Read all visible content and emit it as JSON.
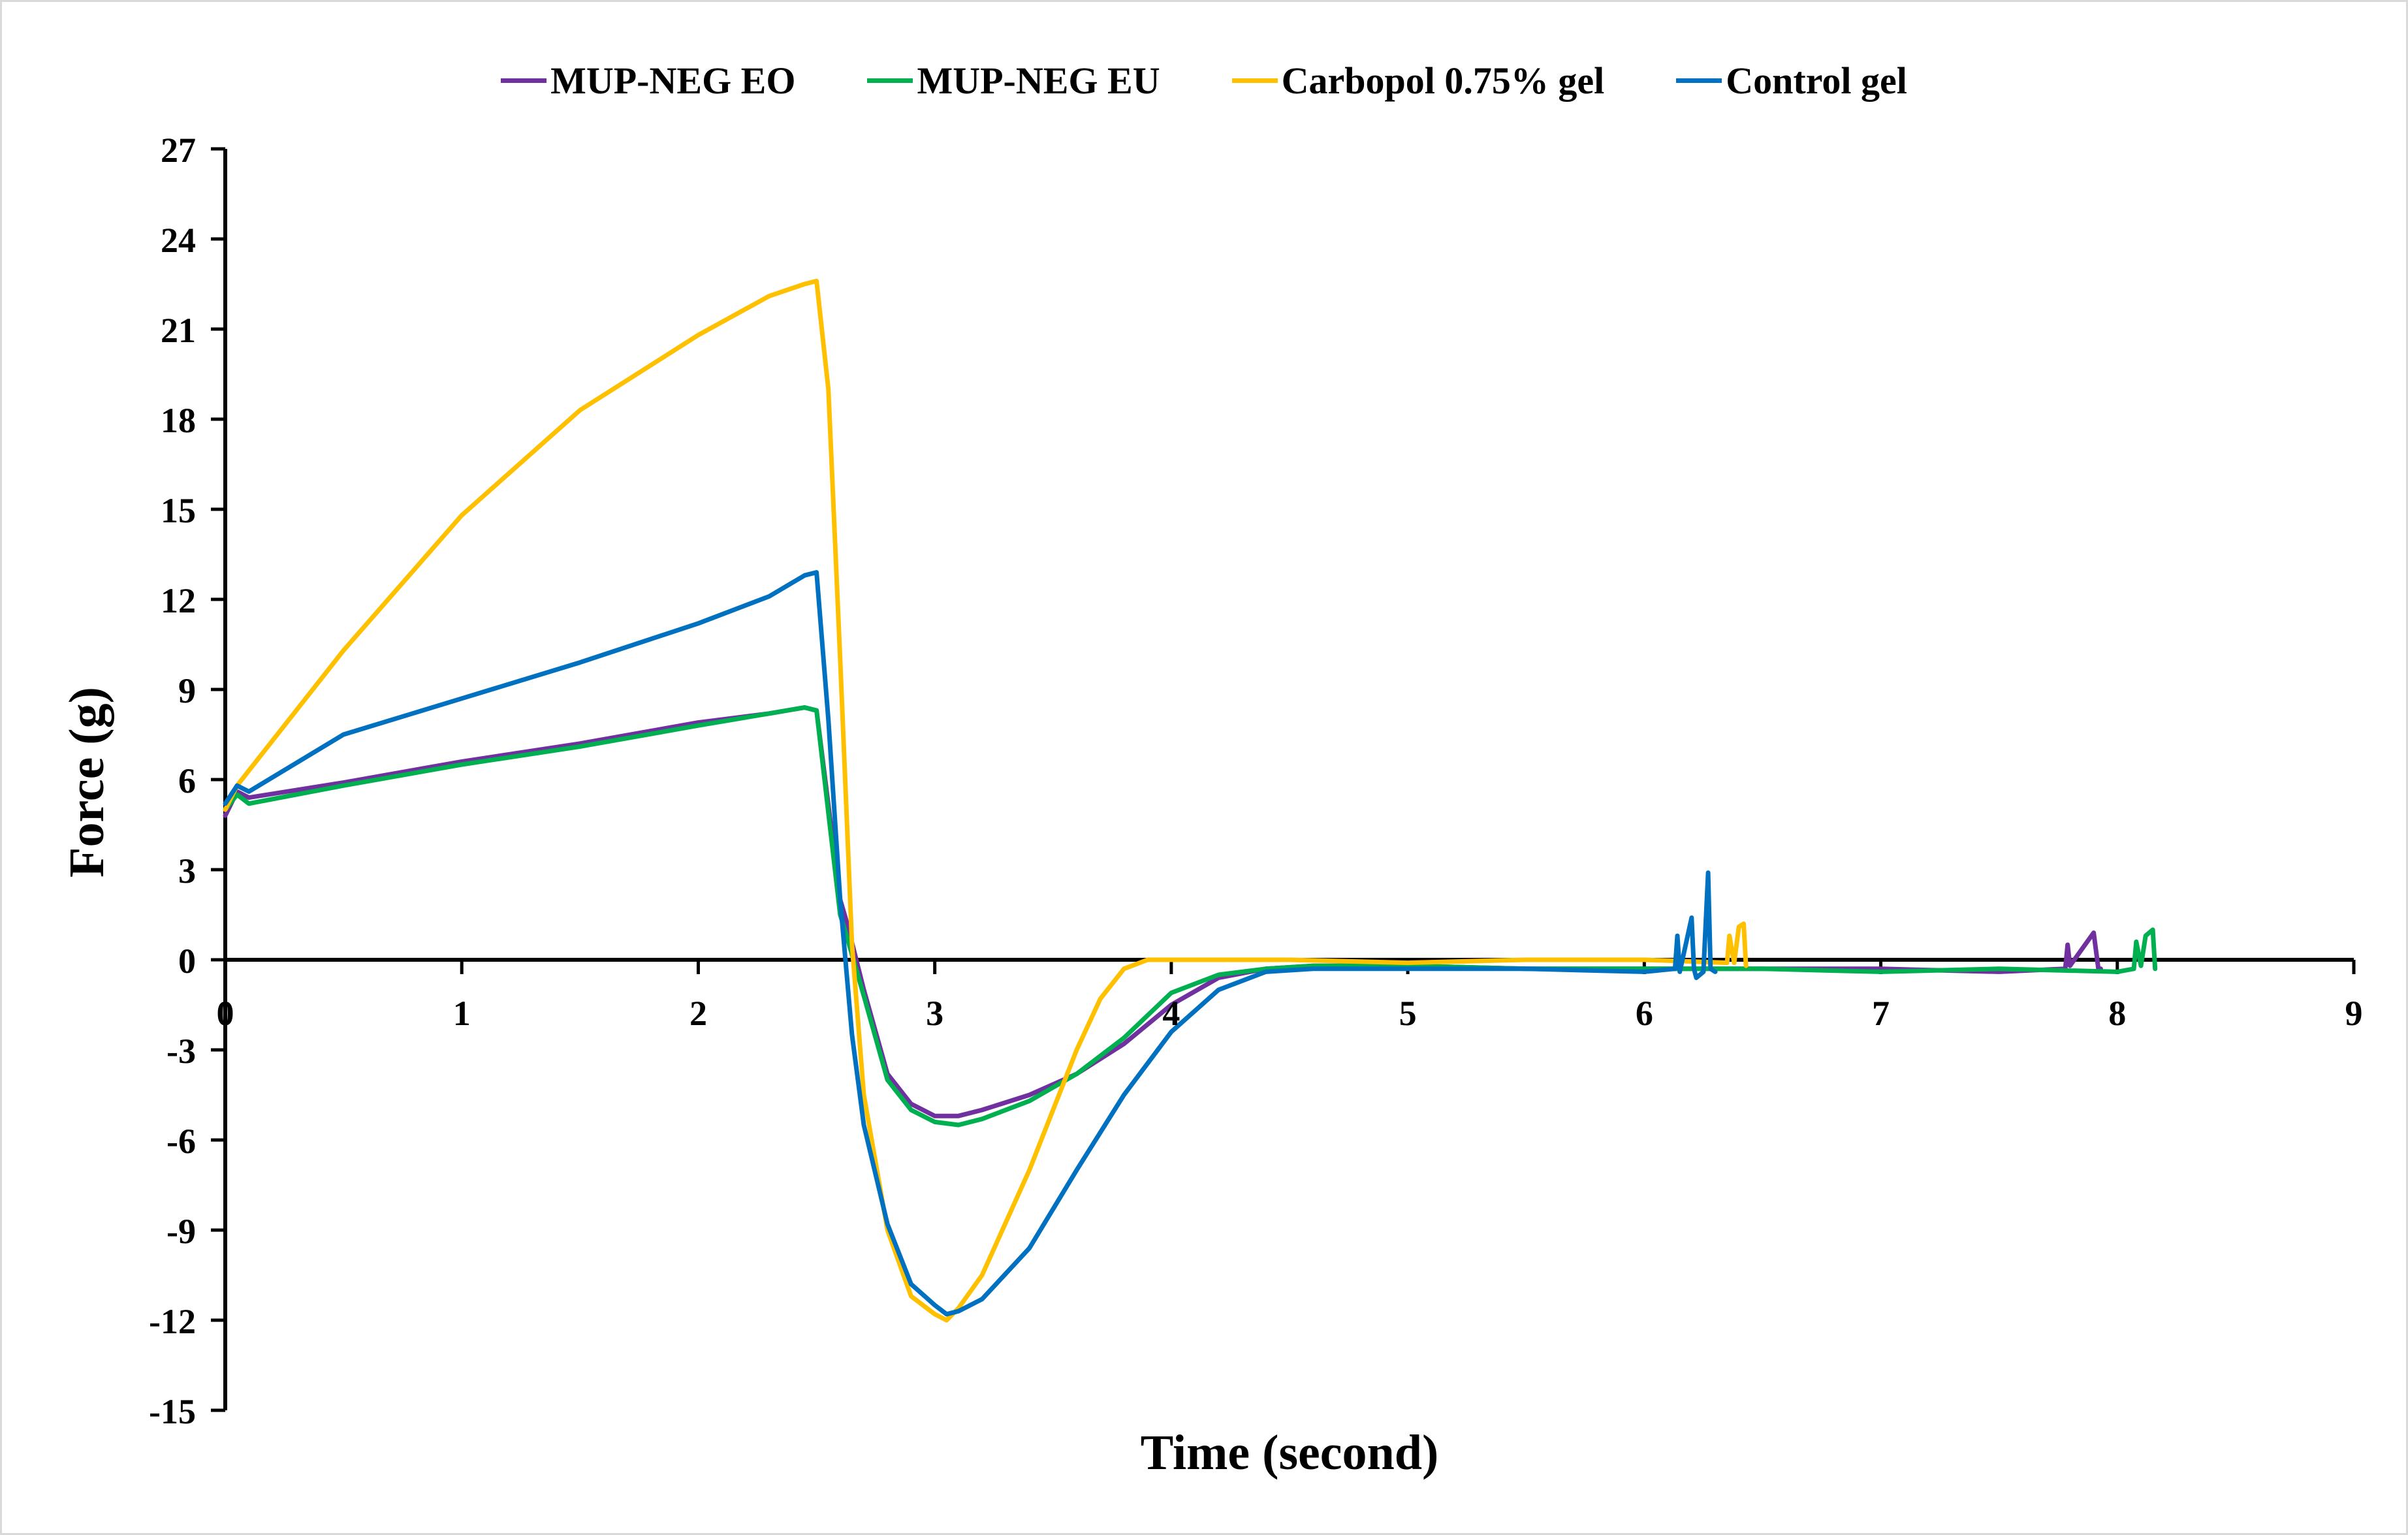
{
  "chart_data": {
    "type": "line",
    "title": "",
    "xlabel": "Time (second)",
    "ylabel": "Force (g)",
    "xlim": [
      0,
      9
    ],
    "ylim": [
      -15,
      27
    ],
    "x_ticks": [
      "0",
      "1",
      "2",
      "3",
      "4",
      "5",
      "6",
      "7",
      "8",
      "9"
    ],
    "y_ticks": [
      "27",
      "24",
      "21",
      "18",
      "15",
      "12",
      "9",
      "6",
      "3",
      "0",
      "-3",
      "-6",
      "-9",
      "-12",
      "-15"
    ],
    "legend_position": "top-center",
    "series": [
      {
        "name": "MUP-NEG EO",
        "color": "#7030A0",
        "x": [
          0,
          0.05,
          0.1,
          0.5,
          1,
          1.5,
          2,
          2.3,
          2.45,
          2.5,
          2.6,
          2.63,
          2.7,
          2.8,
          2.9,
          3.0,
          3.1,
          3.2,
          3.4,
          3.6,
          3.8,
          4.0,
          4.2,
          4.4,
          4.6,
          5.0,
          5.5,
          6.0,
          6.3,
          6.5,
          7.0,
          7.5,
          7.78,
          7.79,
          7.8,
          7.9,
          7.92,
          7.93
        ],
        "y": [
          4.8,
          5.6,
          5.4,
          5.9,
          6.6,
          7.2,
          7.9,
          8.2,
          8.4,
          8.3,
          2.0,
          1.2,
          -1.0,
          -3.8,
          -4.8,
          -5.2,
          -5.2,
          -5.0,
          -4.5,
          -3.8,
          -2.8,
          -1.5,
          -0.6,
          -0.3,
          -0.2,
          -0.2,
          -0.3,
          -0.3,
          -0.3,
          -0.3,
          -0.3,
          -0.4,
          -0.3,
          0.5,
          -0.2,
          0.9,
          -0.3,
          -0.3
        ]
      },
      {
        "name": "MUP-NEG EU",
        "color": "#00B050",
        "x": [
          0,
          0.05,
          0.1,
          0.5,
          1,
          1.5,
          2,
          2.3,
          2.45,
          2.5,
          2.6,
          2.62,
          2.7,
          2.8,
          2.9,
          3.0,
          3.1,
          3.2,
          3.4,
          3.6,
          3.8,
          4.0,
          4.2,
          4.4,
          4.6,
          5.0,
          5.5,
          6.0,
          6.5,
          7.0,
          7.5,
          8.0,
          8.07,
          8.08,
          8.1,
          8.12,
          8.15,
          8.16
        ],
        "y": [
          5.0,
          5.5,
          5.2,
          5.8,
          6.5,
          7.1,
          7.8,
          8.2,
          8.4,
          8.3,
          1.5,
          1.0,
          -1.2,
          -4.0,
          -5.0,
          -5.4,
          -5.5,
          -5.3,
          -4.7,
          -3.8,
          -2.6,
          -1.1,
          -0.5,
          -0.3,
          -0.2,
          -0.2,
          -0.3,
          -0.3,
          -0.3,
          -0.4,
          -0.3,
          -0.4,
          -0.3,
          0.6,
          -0.2,
          0.8,
          1.0,
          -0.3
        ]
      },
      {
        "name": "Carbopol 0.75% gel",
        "color": "#FFC000",
        "x": [
          0,
          0.05,
          0.1,
          0.5,
          1,
          1.5,
          2,
          2.3,
          2.45,
          2.5,
          2.55,
          2.6,
          2.65,
          2.7,
          2.8,
          2.9,
          3.0,
          3.05,
          3.1,
          3.2,
          3.4,
          3.6,
          3.7,
          3.8,
          3.9,
          4.0,
          4.5,
          5.0,
          5.5,
          6.0,
          6.35,
          6.36,
          6.38,
          6.4,
          6.42,
          6.43
        ],
        "y": [
          5.0,
          5.8,
          6.3,
          10.3,
          14.8,
          18.3,
          20.8,
          22.1,
          22.5,
          22.6,
          19.0,
          10.0,
          0.5,
          -4.5,
          -9.0,
          -11.2,
          -11.8,
          -12.0,
          -11.6,
          -10.5,
          -7.0,
          -3.0,
          -1.3,
          -0.3,
          0.0,
          0.0,
          0.0,
          -0.1,
          0.0,
          0.0,
          -0.1,
          0.8,
          -0.1,
          1.1,
          1.2,
          -0.2
        ]
      },
      {
        "name": "Control gel",
        "color": "#0070C0",
        "x": [
          0,
          0.05,
          0.1,
          0.5,
          1,
          1.5,
          2,
          2.3,
          2.45,
          2.5,
          2.55,
          2.6,
          2.65,
          2.7,
          2.8,
          2.9,
          3.0,
          3.05,
          3.1,
          3.2,
          3.4,
          3.6,
          3.8,
          4.0,
          4.2,
          4.4,
          4.6,
          5.0,
          5.5,
          6.0,
          6.13,
          6.14,
          6.15,
          6.2,
          6.21,
          6.22,
          6.25,
          6.27,
          6.28,
          6.3
        ],
        "y": [
          5.2,
          5.8,
          5.6,
          7.5,
          8.7,
          9.9,
          11.2,
          12.1,
          12.8,
          12.9,
          8.0,
          2.0,
          -2.5,
          -5.5,
          -8.8,
          -10.8,
          -11.5,
          -11.8,
          -11.7,
          -11.3,
          -9.6,
          -7.0,
          -4.5,
          -2.4,
          -1.0,
          -0.4,
          -0.3,
          -0.3,
          -0.3,
          -0.4,
          -0.3,
          0.8,
          -0.4,
          1.4,
          -0.3,
          -0.6,
          -0.4,
          2.9,
          -0.3,
          -0.4
        ]
      }
    ]
  }
}
